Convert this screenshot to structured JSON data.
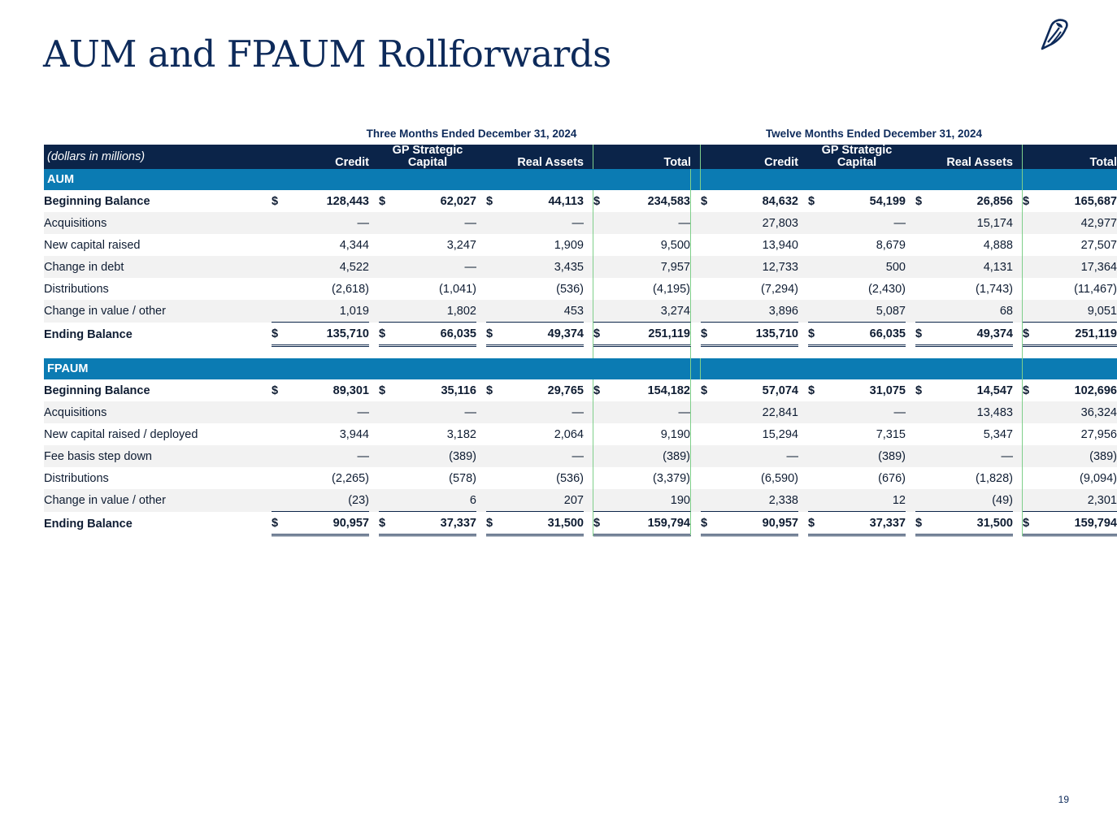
{
  "page": {
    "title": "AUM and FPAUM Rollforwards",
    "page_number": "19",
    "logo_icon": "owl-logo-icon"
  },
  "header": {
    "period1": "Three Months Ended December 31, 2024",
    "period2": "Twelve Months Ended December 31, 2024",
    "units": "(dollars in millions)",
    "columns": [
      "Credit",
      "GP Strategic",
      "Capital",
      "Real Assets",
      "Total"
    ]
  },
  "sections": [
    {
      "name": "AUM",
      "rows": [
        {
          "label": "Beginning Balance",
          "bold": true,
          "dollar": true,
          "values": [
            "128,443",
            "62,027",
            "44,113",
            "234,583",
            "84,632",
            "54,199",
            "26,856",
            "165,687"
          ]
        },
        {
          "label": "Acquisitions",
          "values": [
            "—",
            "—",
            "—",
            "—",
            "27,803",
            "—",
            "15,174",
            "42,977"
          ]
        },
        {
          "label": "New capital raised",
          "values": [
            "4,344",
            "3,247",
            "1,909",
            "9,500",
            "13,940",
            "8,679",
            "4,888",
            "27,507"
          ]
        },
        {
          "label": "Change in debt",
          "values": [
            "4,522",
            "—",
            "3,435",
            "7,957",
            "12,733",
            "500",
            "4,131",
            "17,364"
          ]
        },
        {
          "label": "Distributions",
          "values": [
            "(2,618)",
            "(1,041)",
            "(536)",
            "(4,195)",
            "(7,294)",
            "(2,430)",
            "(1,743)",
            "(11,467)"
          ]
        },
        {
          "label": "Change in value / other",
          "values": [
            "1,019",
            "1,802",
            "453",
            "3,274",
            "3,896",
            "5,087",
            "68",
            "9,051"
          ]
        },
        {
          "label": "Ending Balance",
          "bold": true,
          "dollar": true,
          "values": [
            "135,710",
            "66,035",
            "49,374",
            "251,119",
            "135,710",
            "66,035",
            "49,374",
            "251,119"
          ]
        }
      ]
    },
    {
      "name": "FPAUM",
      "rows": [
        {
          "label": "Beginning Balance",
          "bold": true,
          "dollar": true,
          "values": [
            "89,301",
            "35,116",
            "29,765",
            "154,182",
            "57,074",
            "31,075",
            "14,547",
            "102,696"
          ]
        },
        {
          "label": "Acquisitions",
          "values": [
            "—",
            "—",
            "—",
            "—",
            "22,841",
            "—",
            "13,483",
            "36,324"
          ]
        },
        {
          "label": "New capital raised / deployed",
          "values": [
            "3,944",
            "3,182",
            "2,064",
            "9,190",
            "15,294",
            "7,315",
            "5,347",
            "27,956"
          ]
        },
        {
          "label": "Fee basis step down",
          "values": [
            "—",
            "(389)",
            "—",
            "(389)",
            "—",
            "(389)",
            "—",
            "(389)"
          ]
        },
        {
          "label": "Distributions",
          "values": [
            "(2,265)",
            "(578)",
            "(536)",
            "(3,379)",
            "(6,590)",
            "(676)",
            "(1,828)",
            "(9,094)"
          ]
        },
        {
          "label": "Change in value / other",
          "values": [
            "(23)",
            "6",
            "207",
            "190",
            "2,338",
            "12",
            "(49)",
            "2,301"
          ]
        },
        {
          "label": "Ending Balance",
          "bold": true,
          "dollar": true,
          "values": [
            "90,957",
            "37,337",
            "31,500",
            "159,794",
            "90,957",
            "37,337",
            "31,500",
            "159,794"
          ]
        }
      ]
    }
  ],
  "currency_symbol": "$",
  "colors": {
    "navy": "#0b2449",
    "section_blue": "#0b7bb3",
    "title": "#0d2a5a",
    "divider_green": "#7fcf8a"
  }
}
